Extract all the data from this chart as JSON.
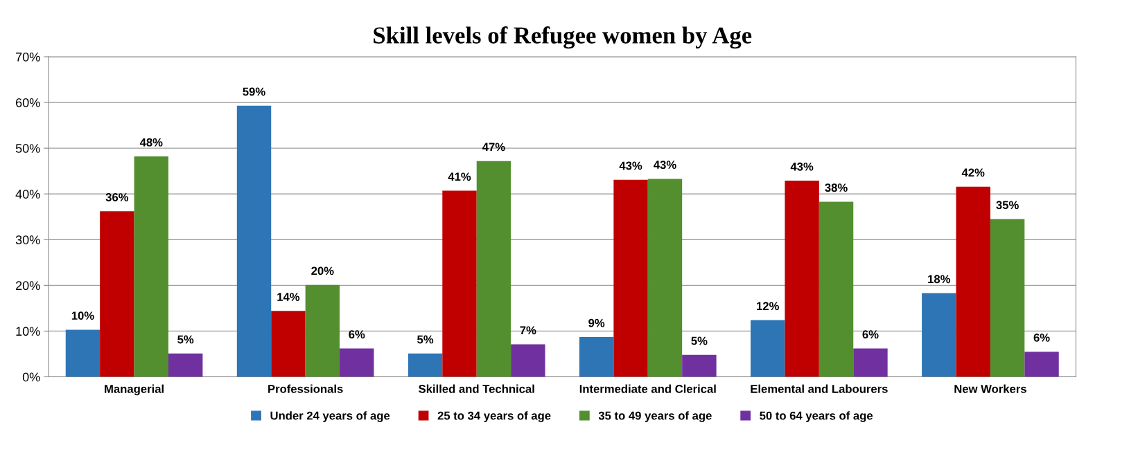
{
  "chart_data": {
    "type": "bar",
    "title": "Skill levels of Refugee women by Age",
    "categories": [
      "Managerial",
      "Professionals",
      "Skilled and Technical",
      "Intermediate and Clerical",
      "Elemental and Labourers",
      "New Workers"
    ],
    "series": [
      {
        "name": "Under 24 years of age",
        "color": "#2e75b6",
        "values": [
          10.3,
          59.3,
          5.1,
          8.7,
          12.4,
          18.3
        ],
        "value_labels": [
          "10%",
          "59%",
          "5%",
          "9%",
          "12%",
          "18%"
        ]
      },
      {
        "name": "25 to 34 years of age",
        "color": "#c00000",
        "values": [
          36.2,
          14.4,
          40.7,
          43.1,
          42.9,
          41.6
        ],
        "value_labels": [
          "36%",
          "14%",
          "41%",
          "43%",
          "43%",
          "42%"
        ]
      },
      {
        "name": "35 to 49 years of age",
        "color": "#548f2f",
        "values": [
          48.2,
          20.1,
          47.2,
          43.3,
          38.3,
          34.5
        ],
        "value_labels": [
          "48%",
          "20%",
          "47%",
          "43%",
          "38%",
          "35%"
        ]
      },
      {
        "name": "50 to 64 years of age",
        "color": "#7030a0",
        "values": [
          5.1,
          6.2,
          7.1,
          4.8,
          6.2,
          5.5
        ],
        "value_labels": [
          "5%",
          "6%",
          "7%",
          "5%",
          "6%",
          "6%"
        ]
      }
    ],
    "ylim": [
      0,
      70
    ],
    "yticks": [
      {
        "value": 0,
        "label": "0%"
      },
      {
        "value": 10,
        "label": "10%"
      },
      {
        "value": 20,
        "label": "20%"
      },
      {
        "value": 30,
        "label": "30%"
      },
      {
        "value": 40,
        "label": "40%"
      },
      {
        "value": 50,
        "label": "50%"
      },
      {
        "value": 60,
        "label": "60%"
      },
      {
        "value": 70,
        "label": "70%"
      }
    ],
    "grid": "y",
    "legend": "bottom"
  }
}
